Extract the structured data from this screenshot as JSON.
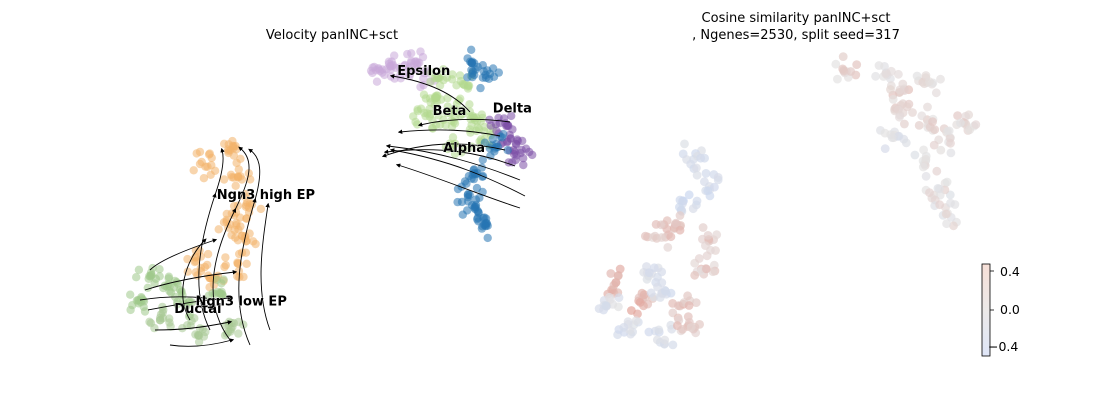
{
  "chart_data": [
    {
      "type": "scatter",
      "title": "Velocity panINC+sct",
      "subtitle": "",
      "xlabel": "",
      "ylabel": "",
      "grid": false,
      "legend": "on data",
      "clusters": [
        {
          "name": "Epsilon",
          "color": "#c8a8d8",
          "points": [
            [
              -1.1,
              8.6
            ],
            [
              -0.7,
              8.8
            ],
            [
              -0.2,
              8.9
            ],
            [
              0.1,
              8.5
            ]
          ]
        },
        {
          "name": "Beta",
          "color": "#b2d98e",
          "points": [
            [
              0.5,
              7.5
            ],
            [
              1.2,
              7.0
            ],
            [
              0.8,
              6.4
            ],
            [
              1.6,
              6.6
            ],
            [
              1.0,
              5.6
            ],
            [
              1.8,
              5.9
            ],
            [
              0.2,
              6.9
            ],
            [
              0.6,
              8.3
            ],
            [
              1.3,
              8.0
            ]
          ]
        },
        {
          "name": "Delta",
          "color": "#7c4fa6",
          "points": [
            [
              2.4,
              6.5
            ],
            [
              2.6,
              5.8
            ],
            [
              2.8,
              5.2
            ]
          ]
        },
        {
          "name": "Alpha",
          "color": "#2674b2",
          "points": [
            [
              1.5,
              8.9
            ],
            [
              1.9,
              8.4
            ],
            [
              2.2,
              5.5
            ],
            [
              1.6,
              4.5
            ],
            [
              1.4,
              3.6
            ],
            [
              1.6,
              3.0
            ],
            [
              1.9,
              2.4
            ]
          ]
        },
        {
          "name": "Ngn3 high EP",
          "color": "#f2b26a",
          "points": [
            [
              -6.0,
              4.8
            ],
            [
              -5.3,
              5.3
            ],
            [
              -5.1,
              4.3
            ],
            [
              -4.8,
              3.2
            ],
            [
              -4.9,
              1.9
            ],
            [
              -5.4,
              2.5
            ],
            [
              -5.1,
              0.8
            ],
            [
              -5.9,
              0.2
            ],
            [
              -6.3,
              0.9
            ]
          ]
        },
        {
          "name": "Ngn3 low EP",
          "color": "#9ec98a",
          "points": [
            [
              -7.6,
              0.3
            ],
            [
              -7.1,
              -0.2
            ],
            [
              -7.9,
              -0.7
            ],
            [
              -6.6,
              -0.8
            ],
            [
              -5.6,
              -0.4
            ]
          ]
        },
        {
          "name": "Ductal",
          "color": "#a8c894",
          "points": [
            [
              -7.3,
              -1.5
            ],
            [
              -6.3,
              -2.0
            ],
            [
              -5.3,
              -1.6
            ]
          ]
        }
      ],
      "labels": [
        {
          "text": "Epsilon",
          "x": -0.6,
          "y": 8.4
        },
        {
          "text": "Beta",
          "x": 0.4,
          "y": 6.8
        },
        {
          "text": "Delta",
          "x": 2.1,
          "y": 6.9
        },
        {
          "text": "Alpha",
          "x": 0.7,
          "y": 5.3
        },
        {
          "text": "Ngn3 high EP",
          "x": -5.7,
          "y": 3.4
        },
        {
          "text": "Ductal",
          "x": -6.9,
          "y": -1.2
        },
        {
          "text": "Ngn3 low EP",
          "x": -6.3,
          "y": -0.9
        }
      ]
    },
    {
      "type": "scatter",
      "title": "Cosine similarity panINC+sct",
      "subtitle": ", Ngenes=2530, split seed=317",
      "xlabel": "",
      "ylabel": "",
      "grid": false,
      "colormap": "coolwarm",
      "colorbar": {
        "ticks": [
          "0.4",
          "0.0",
          "−0.4"
        ],
        "range": [
          -0.5,
          0.5
        ]
      },
      "legend": "none",
      "points": [
        [
          -1.1,
          8.6,
          0.1
        ],
        [
          0.1,
          8.5,
          0.0
        ],
        [
          0.6,
          7.8,
          0.15
        ],
        [
          1.3,
          8.2,
          0.05
        ],
        [
          0.5,
          7.0,
          0.1
        ],
        [
          1.2,
          6.6,
          0.12
        ],
        [
          2.3,
          6.5,
          0.08
        ],
        [
          0.3,
          5.9,
          -0.1
        ],
        [
          1.8,
          5.7,
          0.05
        ],
        [
          1.2,
          4.8,
          0.0
        ],
        [
          1.6,
          3.8,
          0.0
        ],
        [
          1.8,
          2.8,
          0.0
        ],
        [
          -5.3,
          5.2,
          -0.2
        ],
        [
          -5.0,
          4.0,
          -0.25
        ],
        [
          -5.6,
          3.2,
          -0.3
        ],
        [
          -5.9,
          2.4,
          0.25
        ],
        [
          -6.3,
          1.9,
          0.2
        ],
        [
          -4.9,
          1.7,
          0.2
        ],
        [
          -5.1,
          0.6,
          0.15
        ],
        [
          -6.6,
          0.4,
          -0.2
        ],
        [
          -7.5,
          0.0,
          0.3
        ],
        [
          -7.8,
          -0.9,
          -0.15
        ],
        [
          -6.9,
          -0.7,
          0.35
        ],
        [
          -6.2,
          -0.4,
          -0.25
        ],
        [
          -5.6,
          -0.9,
          0.25
        ],
        [
          -7.2,
          -1.7,
          -0.2
        ],
        [
          -6.2,
          -2.1,
          -0.2
        ],
        [
          -5.4,
          -1.8,
          0.2
        ]
      ]
    }
  ],
  "axes_ranges": {
    "x": [
      -9.0,
      4.0
    ],
    "y": [
      -3.5,
      9.5
    ]
  }
}
